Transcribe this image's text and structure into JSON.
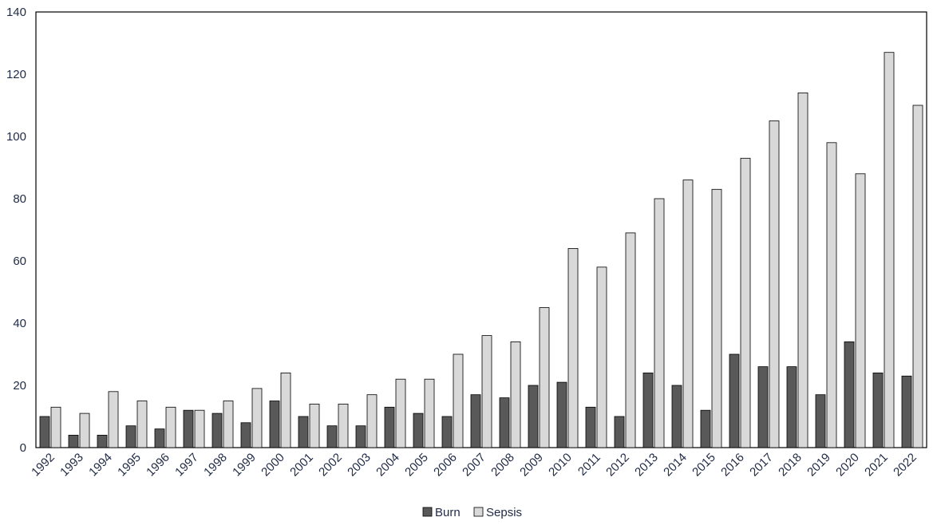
{
  "chart_data": {
    "type": "bar",
    "categories": [
      "1992",
      "1993",
      "1994",
      "1995",
      "1996",
      "1997",
      "1998",
      "1999",
      "2000",
      "2001",
      "2002",
      "2003",
      "2004",
      "2005",
      "2006",
      "2007",
      "2008",
      "2009",
      "2010",
      "2011",
      "2012",
      "2013",
      "2014",
      "2015",
      "2016",
      "2017",
      "2018",
      "2019",
      "2020",
      "2021",
      "2022"
    ],
    "series": [
      {
        "name": "Burn",
        "color": "#595959",
        "values": [
          10,
          4,
          4,
          7,
          6,
          12,
          11,
          8,
          15,
          10,
          7,
          7,
          13,
          11,
          10,
          17,
          16,
          20,
          21,
          13,
          10,
          24,
          20,
          12,
          30,
          26,
          26,
          17,
          34,
          24,
          23
        ]
      },
      {
        "name": "Sepsis",
        "color": "#d9d9d9",
        "values": [
          13,
          11,
          18,
          15,
          13,
          12,
          15,
          19,
          24,
          14,
          14,
          17,
          22,
          22,
          30,
          36,
          34,
          45,
          64,
          58,
          69,
          80,
          86,
          83,
          93,
          105,
          114,
          98,
          88,
          127,
          110
        ]
      }
    ],
    "ylim": [
      0,
      140
    ],
    "yticks": [
      0,
      20,
      40,
      60,
      80,
      100,
      120,
      140
    ],
    "grid": false,
    "legend_position": "bottom-center",
    "title": "",
    "xlabel": "",
    "ylabel": ""
  }
}
